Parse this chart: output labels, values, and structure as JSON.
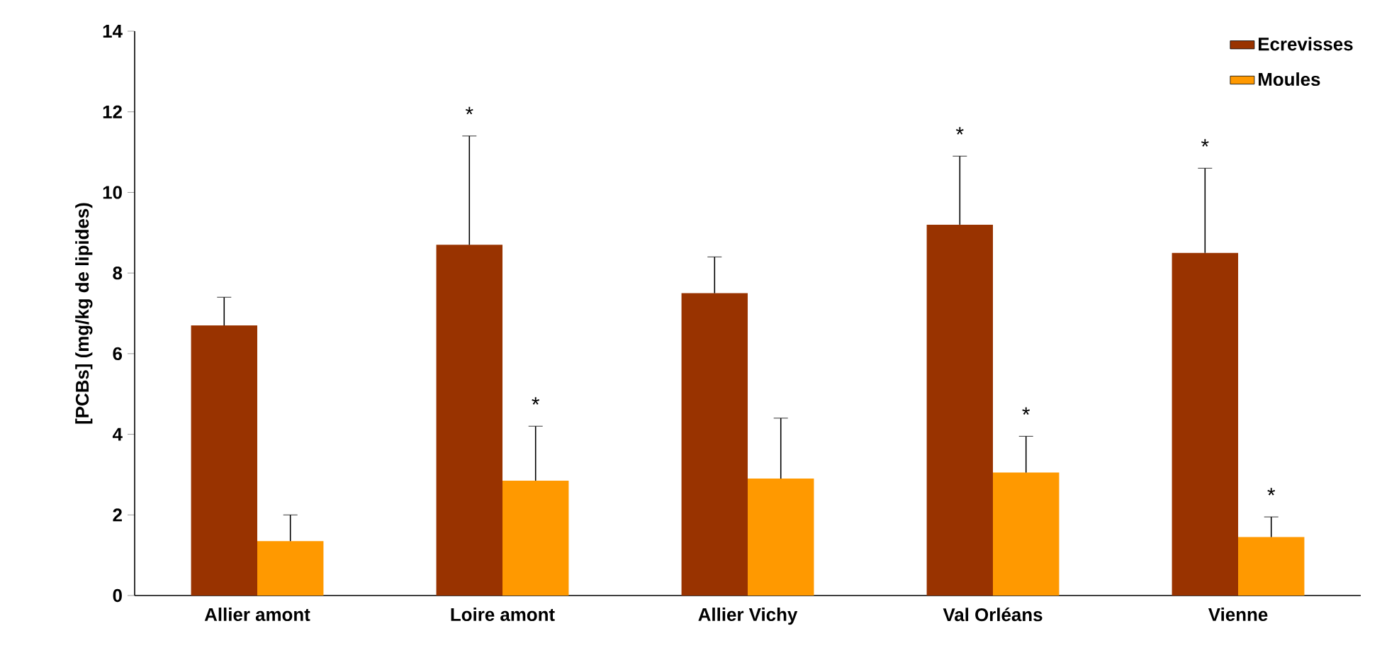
{
  "chart_data": {
    "type": "bar",
    "ylabel": "[PCBs] (mg/kg de lipides)",
    "categories": [
      "Allier amont",
      "Loire amont",
      "Allier Vichy",
      "Val Orléans",
      "Vienne"
    ],
    "series": [
      {
        "name": "Ecrevisses",
        "color": "#993300",
        "values": [
          6.7,
          8.7,
          7.5,
          9.2,
          8.5
        ],
        "errors": [
          [
            6.7,
            7.4
          ],
          [
            8.7,
            11.4
          ],
          [
            7.5,
            8.4
          ],
          [
            9.2,
            10.9
          ],
          [
            8.5,
            10.6
          ]
        ]
      },
      {
        "name": "Moules",
        "color": "#ff9900",
        "values": [
          1.35,
          2.85,
          2.9,
          3.05,
          1.45
        ],
        "errors": [
          [
            1.35,
            2.0
          ],
          [
            2.85,
            4.2
          ],
          [
            2.9,
            4.4
          ],
          [
            3.05,
            3.95
          ],
          [
            1.45,
            1.95
          ]
        ]
      }
    ],
    "ylim": [
      0,
      14
    ],
    "yticks": [
      0,
      2,
      4,
      6,
      8,
      10,
      12,
      14
    ],
    "grid": false,
    "legend": "top right",
    "annotations": [
      "*",
      "*",
      "*",
      "*",
      "*",
      "*"
    ]
  }
}
